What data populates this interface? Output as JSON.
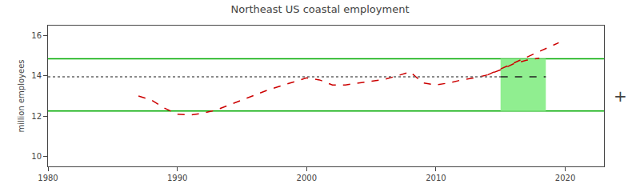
{
  "chart_data": {
    "type": "line",
    "title": "Northeast US coastal employment",
    "ylabel": "million employees",
    "x": [
      1987,
      1988,
      1989,
      1990,
      1991,
      1992,
      1993,
      1994,
      1995,
      1996,
      1997,
      1998,
      1999,
      2000,
      2001,
      2002,
      2003,
      2004,
      2005,
      2006,
      2007,
      2008,
      2009,
      2010,
      2011,
      2012,
      2013,
      2014,
      2015,
      2016,
      2017,
      2018
    ],
    "series": [
      {
        "color": "#cc0000",
        "line_style": "dashed",
        "values": [
          13.0,
          12.8,
          12.4,
          12.1,
          12.05,
          12.15,
          12.3,
          12.55,
          12.8,
          13.05,
          13.3,
          13.5,
          13.7,
          13.9,
          13.8,
          13.55,
          13.55,
          13.65,
          13.75,
          13.82,
          14.0,
          14.2,
          13.65,
          13.55,
          13.65,
          13.8,
          13.9,
          14.05,
          14.3,
          14.6,
          14.78,
          14.88
        ]
      },
      {
        "x": [
          2014,
          2019.5
        ],
        "values": [
          14.05,
          15.65
        ],
        "color": "#cc0000",
        "line_style": "dashed"
      },
      {
        "x": [
          1980,
          2015.0
        ],
        "values": [
          13.95,
          13.95
        ],
        "color": "#666666",
        "line_style": "dotted"
      },
      {
        "x": [
          2015.0,
          2018.5
        ],
        "values": [
          13.95,
          13.95
        ],
        "color": "#222222",
        "line_style": "dashed"
      }
    ],
    "bands": [
      {
        "x": [
          2015.0,
          2018.5
        ],
        "y": [
          12.25,
          14.85
        ],
        "color": "#90ee90"
      }
    ],
    "hlines": [
      {
        "y": 14.85,
        "color": "#00aa00"
      },
      {
        "y": 12.25,
        "color": "#00aa00"
      }
    ],
    "annotations": [
      {
        "text": "+"
      }
    ],
    "xlim": [
      1980,
      2023
    ],
    "ylim": [
      9.5,
      16.5
    ],
    "xticks": [
      1980,
      1990,
      2000,
      2010,
      2020
    ],
    "yticks": [
      10,
      12,
      14,
      16
    ],
    "grid": false
  }
}
